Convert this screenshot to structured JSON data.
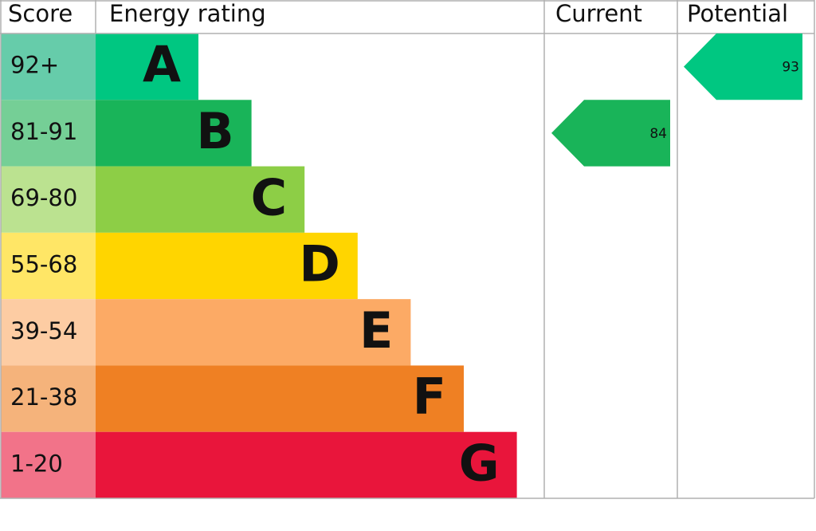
{
  "chart_data": {
    "type": "epc",
    "headers": [
      "Score",
      "Energy rating",
      "Current",
      "Potential"
    ],
    "bands": [
      {
        "score": "92+",
        "letter": "A",
        "color": "#00c781",
        "score_color": "#66ccaa"
      },
      {
        "score": "81-91",
        "letter": "B",
        "color": "#19b459",
        "score_color": "#75cf96"
      },
      {
        "score": "69-80",
        "letter": "C",
        "color": "#8dce46",
        "score_color": "#bbe290"
      },
      {
        "score": "55-68",
        "letter": "D",
        "color": "#ffd500",
        "score_color": "#ffe666"
      },
      {
        "score": "39-54",
        "letter": "E",
        "color": "#fcaa65",
        "score_color": "#fdcca3"
      },
      {
        "score": "21-38",
        "letter": "F",
        "color": "#ef8023",
        "score_color": "#f5b37b"
      },
      {
        "score": "1-20",
        "letter": "G",
        "color": "#e9153b",
        "score_color": "#f27389"
      }
    ],
    "current": {
      "value": 84,
      "color": "#19b459"
    },
    "potential": {
      "value": 93,
      "color": "#00c781"
    }
  }
}
